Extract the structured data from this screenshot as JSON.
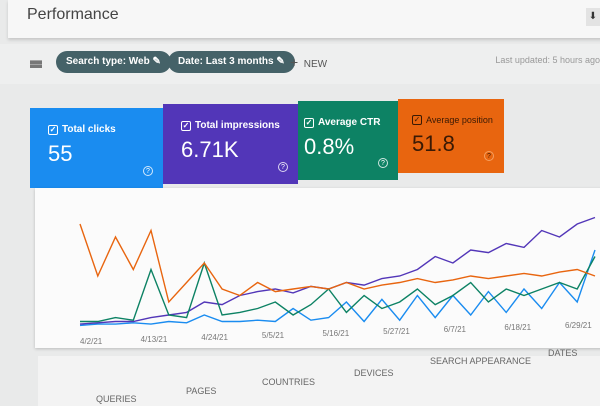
{
  "header": {
    "title": "Performance",
    "download_icon": "download-icon"
  },
  "filters": {
    "chips": [
      "Search type: Web",
      "Date: Last 3 months"
    ],
    "new_label": "NEW",
    "last_updated": "Last updated: 5 hours ago"
  },
  "cards": [
    {
      "label": "Total clicks",
      "value": "55",
      "color": "#1a8cf0"
    },
    {
      "label": "Total impressions",
      "value": "6.71K",
      "color": "#5236b8"
    },
    {
      "label": "Average CTR",
      "value": "0.8%",
      "color": "#0d8264"
    },
    {
      "label": "Average position",
      "value": "51.8",
      "color": "#e8650f"
    }
  ],
  "chart_data": {
    "type": "line",
    "x_ticks": [
      "4/2/21",
      "4/13/21",
      "4/24/21",
      "5/5/21",
      "5/16/21",
      "5/27/21",
      "6/7/21",
      "6/18/21",
      "6/29/21"
    ],
    "ylim": [
      0,
      100
    ],
    "grid": false,
    "series": [
      {
        "color": "#1a8cf0",
        "values": [
          2,
          3,
          3,
          4,
          3,
          5,
          4,
          10,
          5,
          5,
          6,
          5,
          15,
          6,
          8,
          20,
          5,
          22,
          6,
          25,
          8,
          25,
          10,
          28,
          12,
          30,
          15,
          35,
          20,
          60
        ]
      },
      {
        "color": "#5236b8",
        "values": [
          3,
          4,
          5,
          5,
          8,
          10,
          12,
          20,
          18,
          25,
          28,
          30,
          27,
          32,
          30,
          35,
          33,
          38,
          40,
          45,
          55,
          50,
          60,
          58,
          65,
          62,
          75,
          70,
          80,
          85
        ]
      },
      {
        "color": "#0d8264",
        "values": [
          5,
          5,
          8,
          6,
          45,
          10,
          8,
          50,
          10,
          12,
          15,
          20,
          10,
          18,
          30,
          12,
          25,
          15,
          20,
          30,
          18,
          25,
          35,
          20,
          30,
          25,
          30,
          35,
          30,
          55
        ]
      },
      {
        "color": "#e8650f",
        "values": [
          80,
          40,
          70,
          45,
          75,
          20,
          35,
          50,
          30,
          25,
          35,
          28,
          30,
          32,
          30,
          35,
          30,
          33,
          35,
          38,
          35,
          37,
          40,
          38,
          40,
          42,
          40,
          43,
          45,
          40
        ]
      }
    ]
  },
  "tabs": [
    "QUERIES",
    "PAGES",
    "COUNTRIES",
    "DEVICES",
    "SEARCH APPEARANCE",
    "DATES"
  ]
}
